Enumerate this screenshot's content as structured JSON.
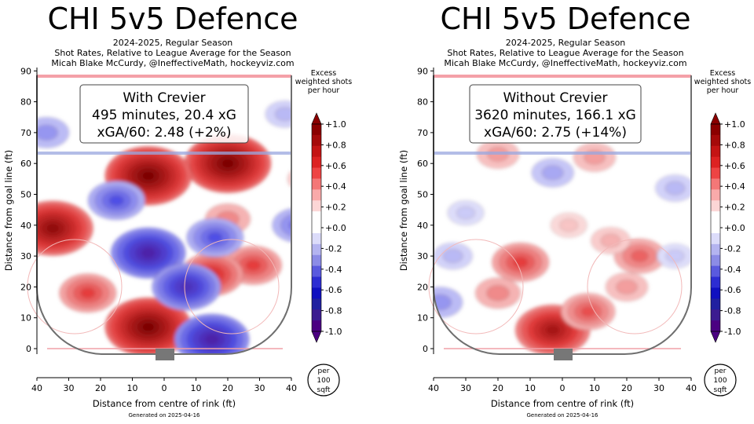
{
  "panels": [
    {
      "title": "CHI 5v5 Defence",
      "subtitle_1": "2024-2025, Regular Season",
      "subtitle_2": "Shot Rates, Relative to League Average for the Season",
      "subtitle_3": "Micah Blake McCurdy, @IneffectiveMath, hockeyviz.com",
      "box_line_1": "With Crevier",
      "box_line_2": "495 minutes, 20.4 xG",
      "box_line_3": "xGA/60: 2.48 (+2%)",
      "footer": "Generated on 2025-04-16"
    },
    {
      "title": "CHI 5v5 Defence",
      "subtitle_1": "2024-2025, Regular Season",
      "subtitle_2": "Shot Rates, Relative to League Average for the Season",
      "subtitle_3": "Micah Blake McCurdy, @IneffectiveMath, hockeyviz.com",
      "box_line_1": "Without Crevier",
      "box_line_2": "3620 minutes, 166.1 xG",
      "box_line_3": "xGA/60: 2.75 (+14%)",
      "footer": "Generated on 2025-04-16"
    }
  ],
  "colorbar": {
    "title_1": "Excess",
    "title_2": "weighted shots",
    "title_3": "per hour",
    "ticks": [
      "+1.0",
      "+0.8",
      "+0.6",
      "+0.4",
      "+0.2",
      "+0.0",
      "-0.2",
      "-0.4",
      "-0.6",
      "-0.8",
      "-1.0"
    ],
    "colors_top_to_bottom": [
      "#8b0000",
      "#a50a0a",
      "#c41414",
      "#dd2222",
      "#ee4444",
      "#f47777",
      "#f9aaaa",
      "#fcd6d6",
      "#ffffff",
      "#ffffff",
      "#dcdcfa",
      "#b4b4f0",
      "#8c8ce6",
      "#5a5ade",
      "#2d2dd2",
      "#1010c0",
      "#2020a0",
      "#3c1c90",
      "#4b0082"
    ]
  },
  "per_unit": {
    "line_1": "per",
    "line_2": "100",
    "line_3": "sqft"
  },
  "chart_data": [
    {
      "type": "heatmap",
      "title": "CHI 5v5 Defence",
      "xlabel": "Distance from centre of rink (ft)",
      "ylabel": "Distance from goal line (ft)",
      "x_ticks": [
        "40",
        "30",
        "20",
        "10",
        "0",
        "10",
        "20",
        "30",
        "40"
      ],
      "y_ticks": [
        "0",
        "10",
        "20",
        "30",
        "40",
        "50",
        "60",
        "70",
        "80",
        "90"
      ],
      "xlim": [
        -40,
        40
      ],
      "ylim": [
        -5,
        90
      ],
      "value_range": [
        -1.0,
        1.0
      ],
      "hotspots": [
        {
          "x": 20,
          "y": 60,
          "value": 1.0
        },
        {
          "x": -5,
          "y": 56,
          "value": 1.0
        },
        {
          "x": -35,
          "y": 39,
          "value": 0.9
        },
        {
          "x": 28,
          "y": 27,
          "value": 0.5
        },
        {
          "x": 15,
          "y": 24,
          "value": 0.6
        },
        {
          "x": -5,
          "y": 7,
          "value": 1.0
        },
        {
          "x": -24,
          "y": 18,
          "value": 0.5
        },
        {
          "x": 20,
          "y": 42,
          "value": 0.3
        },
        {
          "x": 45,
          "y": 55,
          "value": 0.2
        },
        {
          "x": 16,
          "y": 36,
          "value": -0.5
        },
        {
          "x": -5,
          "y": 31,
          "value": -0.8
        },
        {
          "x": 7,
          "y": 20,
          "value": -0.7
        },
        {
          "x": -15,
          "y": 48,
          "value": -0.5
        },
        {
          "x": 15,
          "y": 3,
          "value": -0.8
        },
        {
          "x": 42,
          "y": 40,
          "value": -0.4
        },
        {
          "x": -37,
          "y": 70,
          "value": -0.3
        },
        {
          "x": 38,
          "y": 76,
          "value": -0.2
        }
      ]
    },
    {
      "type": "heatmap",
      "title": "CHI 5v5 Defence",
      "xlabel": "Distance from centre of rink (ft)",
      "ylabel": "Distance from goal line (ft)",
      "x_ticks": [
        "40",
        "30",
        "20",
        "10",
        "0",
        "10",
        "20",
        "30",
        "40"
      ],
      "y_ticks": [
        "0",
        "10",
        "20",
        "30",
        "40",
        "50",
        "60",
        "70",
        "80",
        "90"
      ],
      "xlim": [
        -40,
        40
      ],
      "ylim": [
        -5,
        90
      ],
      "value_range": [
        -1.0,
        1.0
      ],
      "hotspots": [
        {
          "x": -3,
          "y": 6,
          "value": 0.8
        },
        {
          "x": 24,
          "y": 30,
          "value": 0.4
        },
        {
          "x": -13,
          "y": 28,
          "value": 0.5
        },
        {
          "x": 8,
          "y": 12,
          "value": 0.45
        },
        {
          "x": -20,
          "y": 18,
          "value": 0.3
        },
        {
          "x": 20,
          "y": 20,
          "value": 0.25
        },
        {
          "x": 10,
          "y": 62,
          "value": 0.25
        },
        {
          "x": -20,
          "y": 63,
          "value": 0.25
        },
        {
          "x": 15,
          "y": 35,
          "value": 0.2
        },
        {
          "x": 2,
          "y": 40,
          "value": 0.15
        },
        {
          "x": 35,
          "y": 52,
          "value": -0.2
        },
        {
          "x": -3,
          "y": 57,
          "value": -0.25
        },
        {
          "x": -30,
          "y": 44,
          "value": -0.15
        },
        {
          "x": -34,
          "y": 30,
          "value": -0.2
        },
        {
          "x": 35,
          "y": 30,
          "value": -0.15
        },
        {
          "x": -38,
          "y": 15,
          "value": -0.3
        }
      ]
    }
  ]
}
